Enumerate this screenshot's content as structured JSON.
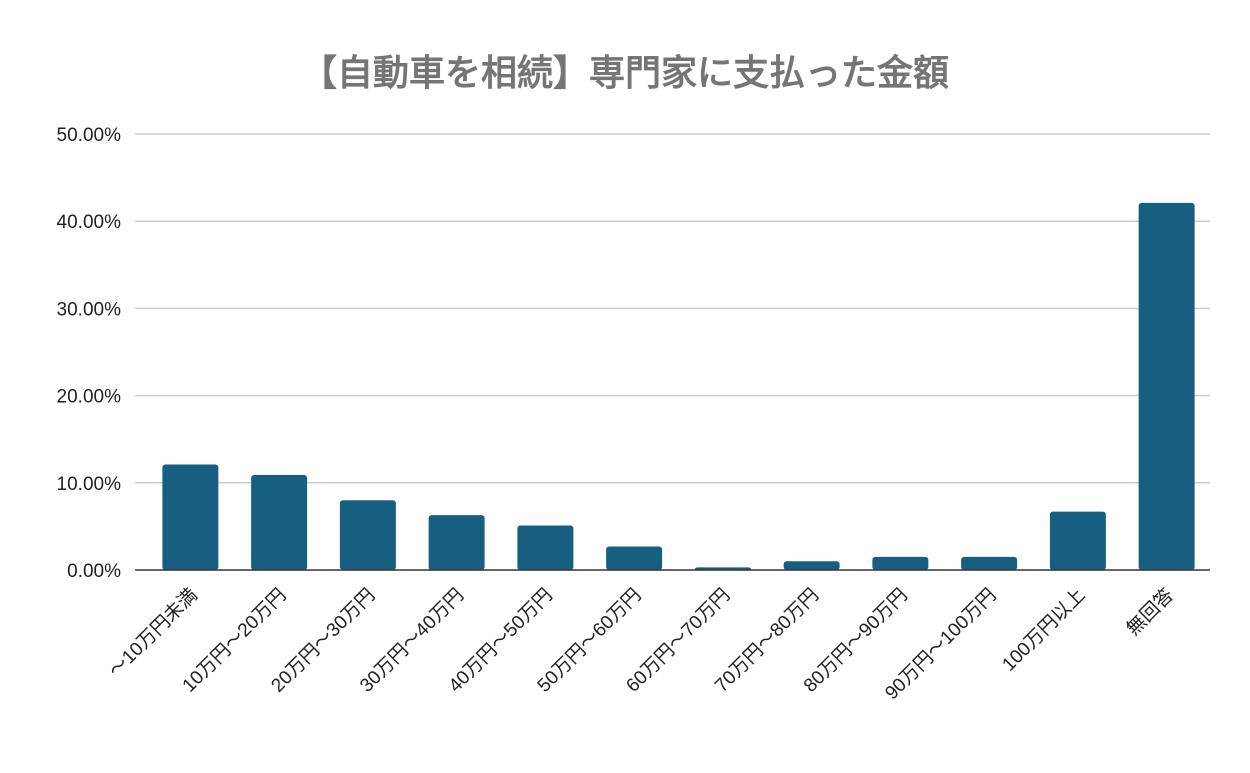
{
  "chart_data": {
    "type": "bar",
    "title": "【自動車を相続】専門家に支払った金額",
    "xlabel": "",
    "ylabel": "",
    "categories": [
      "～10万円未満",
      "10万円～20万円",
      "20万円～30万円",
      "30万円～40万円",
      "40万円～50万円",
      "50万円～60万円",
      "60万円～70万円",
      "70万円～80万円",
      "80万円～90万円",
      "90万円～100万円",
      "100万円以上",
      "無回答"
    ],
    "values": [
      12.1,
      10.9,
      8.0,
      6.3,
      5.1,
      2.7,
      0.3,
      1.0,
      1.5,
      1.5,
      6.7,
      42.1
    ],
    "ylim": [
      0,
      50
    ],
    "yticks": [
      "0.00%",
      "10.00%",
      "20.00%",
      "30.00%",
      "40.00%",
      "50.00%"
    ],
    "grid": true,
    "legend": "none",
    "bar_color": "#175f80"
  }
}
